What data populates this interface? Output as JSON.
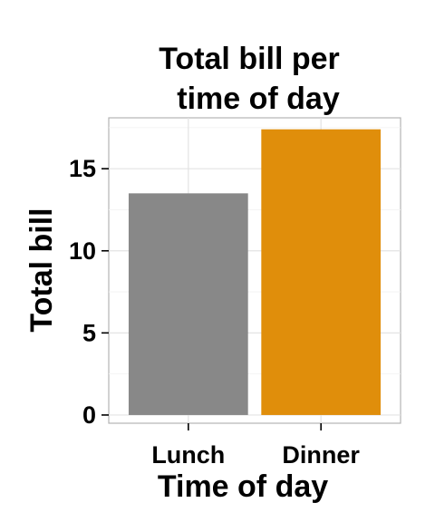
{
  "chart_data": {
    "type": "bar",
    "title_lines": [
      "Total bill per",
      "time of day"
    ],
    "xlabel": "Time of day",
    "ylabel": "Total bill",
    "categories": [
      "Lunch",
      "Dinner"
    ],
    "values": [
      13.5,
      17.4
    ],
    "colors": [
      "#888888",
      "#E08E0B"
    ],
    "ylim": [
      -0.5,
      18.1
    ],
    "yticks": [
      0,
      5,
      10,
      15
    ],
    "ytick_labels": [
      "0",
      "5",
      "10",
      "15"
    ],
    "grid": true,
    "legend": "none"
  }
}
